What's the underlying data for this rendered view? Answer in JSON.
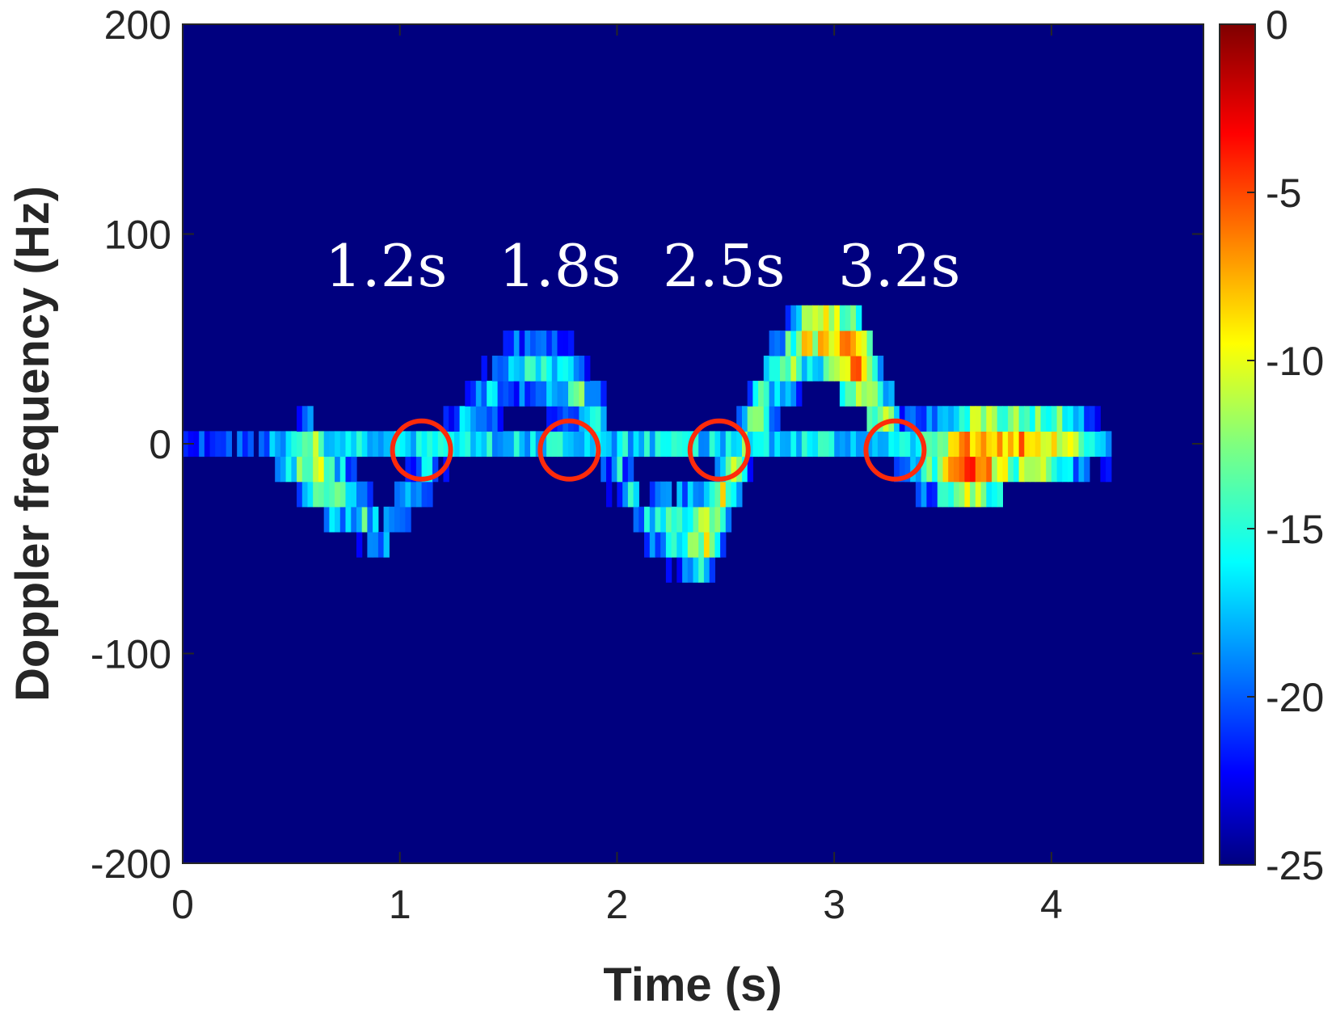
{
  "chart_data": {
    "type": "heatmap",
    "title": "",
    "xlabel": "Time (s)",
    "ylabel": "Doppler frequency (Hz)",
    "xlim": [
      0,
      4.7
    ],
    "ylim": [
      -200,
      200
    ],
    "x_ticks": [
      "0",
      "1",
      "2",
      "3",
      "4"
    ],
    "y_ticks": [
      "200",
      "100",
      "0",
      "-100",
      "-200"
    ],
    "colorbar": {
      "range": [
        -25,
        0
      ],
      "ticks": [
        "0",
        "-5",
        "-10",
        "-15",
        "-20",
        "-25"
      ],
      "colormap": "jet"
    },
    "background_value": -25,
    "signal_extent_s": [
      0,
      4.25
    ],
    "ridge": {
      "description_points_time_s": [
        0.3,
        0.6,
        0.9,
        1.2,
        1.5,
        1.8,
        2.1,
        2.4,
        2.7,
        2.9,
        3.1,
        3.3,
        3.6,
        3.8,
        4.0,
        4.2
      ],
      "doppler_hz": [
        0,
        -10,
        -45,
        0,
        35,
        30,
        -35,
        -45,
        30,
        55,
        40,
        0,
        -10,
        0,
        0,
        0
      ],
      "peak_db": [
        -18,
        -6,
        -14,
        -14,
        -12,
        -10,
        -14,
        -6,
        -10,
        -5,
        -2,
        -13,
        0,
        -4,
        -5,
        -15
      ]
    },
    "annotations": [
      {
        "label": "1.2s",
        "time_s": 1.1,
        "doppler_hz": -3
      },
      {
        "label": "1.8s",
        "time_s": 1.78,
        "doppler_hz": -3
      },
      {
        "label": "2.5s",
        "time_s": 2.47,
        "doppler_hz": -3
      },
      {
        "label": "3.2s",
        "time_s": 3.28,
        "doppler_hz": -3
      }
    ],
    "annotation_text": [
      "1.2s",
      "1.8s",
      "2.5s",
      "3.2s"
    ],
    "marker_color": "#ff2a0a",
    "background_color": "#00007f"
  }
}
